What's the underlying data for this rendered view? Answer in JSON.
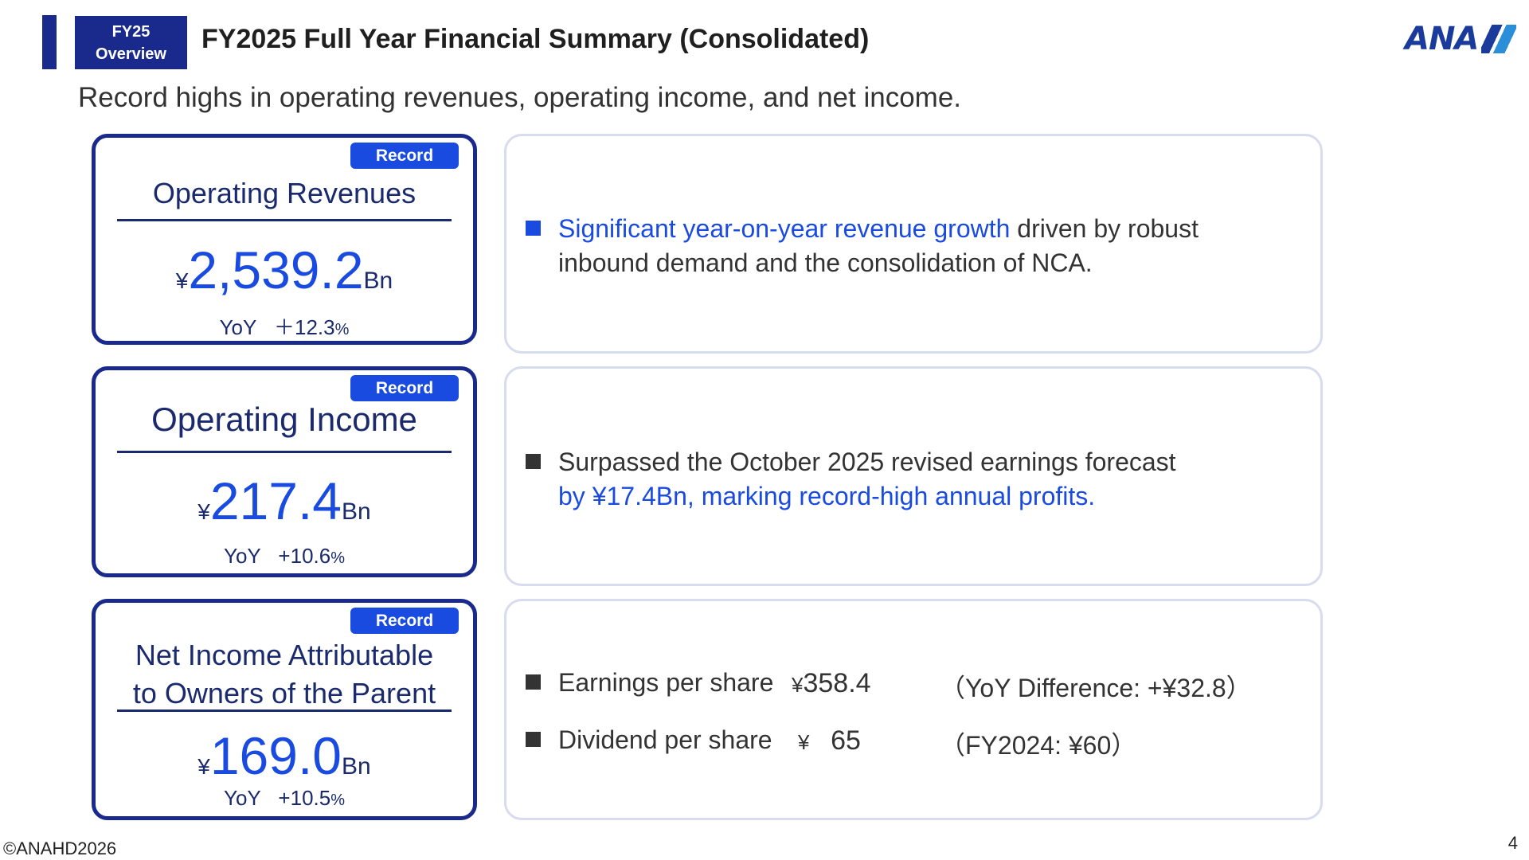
{
  "header": {
    "tag_line1": "FY25",
    "tag_line2": "Overview",
    "title": "FY2025 Full Year Financial Summary (Consolidated)",
    "logo_text": "ANA",
    "subtitle": "Record highs in operating revenues, operating income, and net income."
  },
  "kpis": [
    {
      "badge": "Record",
      "title_line1": "Operating Revenues",
      "title_line2": "",
      "currency": "¥",
      "value": "2,539.2",
      "unit": "Bn",
      "yoy_label": "YoY",
      "yoy_value": "＋12.3",
      "yoy_unit": "%"
    },
    {
      "badge": "Record",
      "title_line1": "Operating Income",
      "title_line2": "",
      "currency": "¥",
      "value": "217.4",
      "unit": "Bn",
      "yoy_label": "YoY",
      "yoy_value": "+10.6",
      "yoy_unit": "%"
    },
    {
      "badge": "Record",
      "title_line1": "Net Income Attributable",
      "title_line2": "to Owners of the Parent",
      "currency": "¥",
      "value": "169.0",
      "unit": "Bn",
      "yoy_label": "YoY",
      "yoy_value": "+10.5",
      "yoy_unit": "%"
    }
  ],
  "details": {
    "revenues": {
      "highlight": "Significant year-on-year revenue growth",
      "rest": " driven by robust",
      "line2": "inbound demand and the consolidation of NCA."
    },
    "income": {
      "line1": "Surpassed the October 2025 revised earnings forecast",
      "line2": "by ¥17.4Bn, marking record-high annual profits."
    },
    "net_income": [
      {
        "label": "Earnings per share",
        "currency": "¥",
        "value": "358.4",
        "note": "（YoY Difference: +¥32.8）"
      },
      {
        "label": "Dividend per share",
        "currency": "¥",
        "value": "65",
        "note": "（FY2024: ¥60）"
      }
    ]
  },
  "footer": {
    "copyright": "©ANAHD2026",
    "page_number": "4"
  },
  "colors": {
    "navy": "#1a2a8c",
    "accent_blue": "#1a4be0",
    "card_border": "#d7dcef"
  }
}
